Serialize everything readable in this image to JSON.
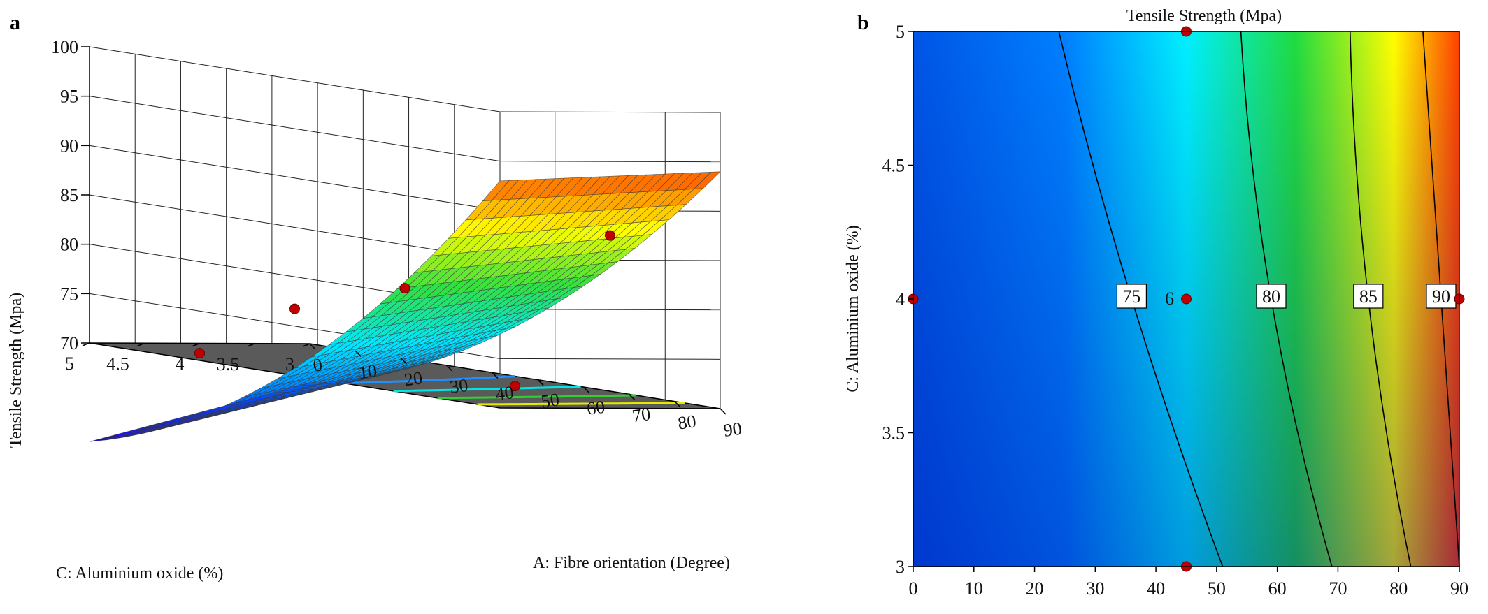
{
  "figure": {
    "panel_a_label": "a",
    "panel_b_label": "b"
  },
  "chart_data": [
    {
      "type": "surface",
      "panel": "a",
      "title": "",
      "xlabel": "A: Fibre orientation (Degree)",
      "ylabel": "C: Aluminium oxide (%)",
      "zlabel": "Tensile Strength (Mpa)",
      "x_ticks": [
        0,
        10,
        20,
        30,
        40,
        50,
        60,
        70,
        80,
        90
      ],
      "y_ticks": [
        3,
        3.5,
        4,
        4.5,
        5
      ],
      "z_ticks": [
        70,
        75,
        80,
        85,
        90,
        95,
        100
      ],
      "xlim": [
        0,
        90
      ],
      "ylim": [
        3,
        5
      ],
      "zlim": [
        70,
        100
      ],
      "colormap": [
        "#1a00e6",
        "#0070ff",
        "#00e8ff",
        "#30e040",
        "#ffff00",
        "#ff5000"
      ],
      "floor_color": "#5a5a5a",
      "marker_color": "#c00000",
      "design_points": [
        {
          "x": 0,
          "y": 4
        },
        {
          "x": 45,
          "y": 3
        },
        {
          "x": 45,
          "y": 4
        },
        {
          "x": 45,
          "y": 5
        },
        {
          "x": 90,
          "y": 4
        }
      ]
    },
    {
      "type": "contour",
      "panel": "b",
      "title": "Tensile Strength (Mpa)",
      "xlabel": "",
      "ylabel": "C: Aluminium oxide (%)",
      "x_ticks": [
        0,
        10,
        20,
        30,
        40,
        50,
        60,
        70,
        80,
        90
      ],
      "y_ticks": [
        3,
        3.5,
        4,
        4.5,
        5
      ],
      "xlim": [
        0,
        90
      ],
      "ylim": [
        3,
        5
      ],
      "contour_levels": [
        {
          "value": 75,
          "label": "75",
          "x_at_c5": 24,
          "x_at_c4": 36,
          "x_at_c3": 51
        },
        {
          "value": 80,
          "label": "80",
          "x_at_c5": 54,
          "x_at_c4": 59,
          "x_at_c3": 69
        },
        {
          "value": 85,
          "label": "85",
          "x_at_c5": 72,
          "x_at_c4": 75,
          "x_at_c3": 82
        },
        {
          "value": 90,
          "label": "90",
          "x_at_c5": 84,
          "x_at_c4": 87,
          "x_at_c3": 90
        }
      ],
      "center_point_count_label": "6",
      "colormap": [
        "#0050e8",
        "#0080ff",
        "#00f0ff",
        "#20e040",
        "#ffff00",
        "#ff4000"
      ],
      "marker_color": "#c00000",
      "design_points": [
        {
          "x": 0,
          "y": 4
        },
        {
          "x": 45,
          "y": 3
        },
        {
          "x": 45,
          "y": 4
        },
        {
          "x": 45,
          "y": 5
        },
        {
          "x": 90,
          "y": 4
        }
      ]
    }
  ]
}
